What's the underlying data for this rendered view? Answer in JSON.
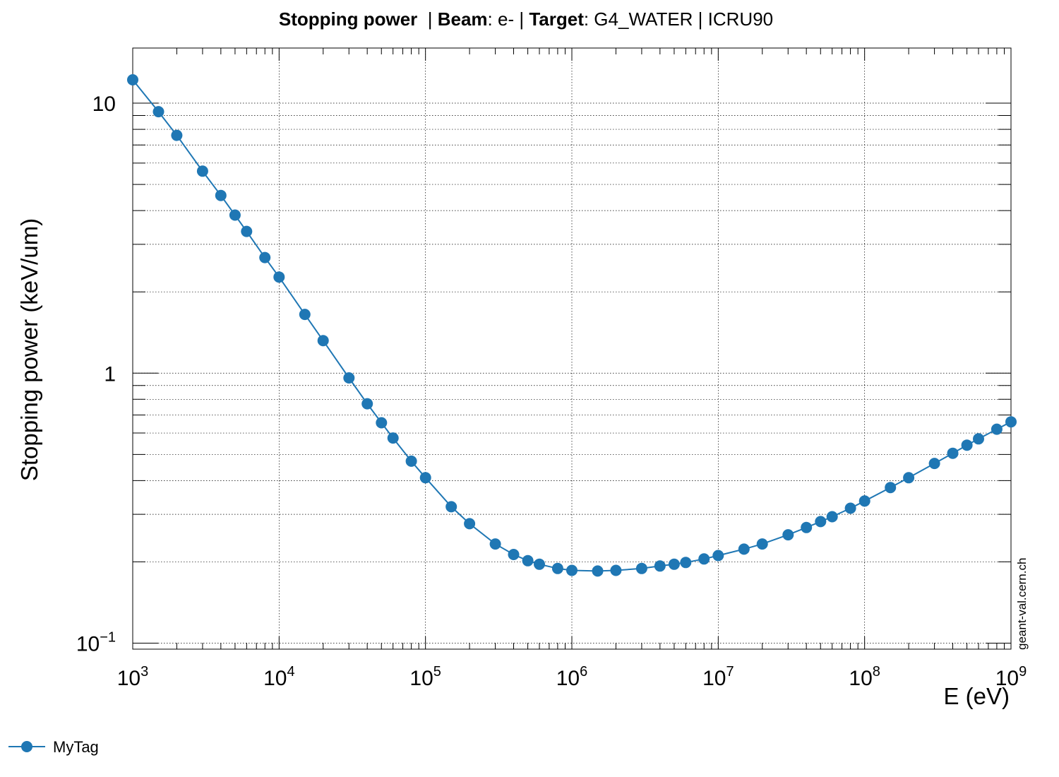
{
  "title": {
    "part1_bold": "Stopping power",
    "part2": "  | ",
    "part3_bold": "Beam",
    "part4": ": e- | ",
    "part5_bold": "Target",
    "part6": ": G4_WATER | ICRU90"
  },
  "watermark": "geant-val.cern.ch",
  "colors": {
    "series": "#1f77b4",
    "grid": "#000000"
  },
  "chart_data": {
    "type": "line",
    "xlabel": "E (eV)",
    "ylabel": "Stopping power (keV/um)",
    "xscale": "log",
    "yscale": "log",
    "xlim": [
      1000,
      1000000000
    ],
    "ylim": [
      0.095,
      16
    ],
    "grid": true,
    "legend": "bottom-left",
    "x_ticks": [
      {
        "base": "10",
        "exp": "3",
        "value": 1000
      },
      {
        "base": "10",
        "exp": "4",
        "value": 10000
      },
      {
        "base": "10",
        "exp": "5",
        "value": 100000
      },
      {
        "base": "10",
        "exp": "6",
        "value": 1000000
      },
      {
        "base": "10",
        "exp": "7",
        "value": 10000000
      },
      {
        "base": "10",
        "exp": "8",
        "value": 100000000
      },
      {
        "base": "10",
        "exp": "9",
        "value": 1000000000
      }
    ],
    "y_ticks": [
      {
        "base": "10",
        "exp": "−1",
        "value": 0.1
      },
      {
        "base": "1",
        "exp": "",
        "value": 1
      },
      {
        "base": "10",
        "exp": "",
        "value": 10
      }
    ],
    "series": [
      {
        "name": "MyTag",
        "marker": "circle",
        "x": [
          1000,
          1500,
          2000,
          3000,
          4000,
          5000,
          6000,
          8000,
          10000,
          15000,
          20000,
          30000,
          40000,
          50000,
          60000,
          80000,
          100000,
          150000,
          200000,
          300000,
          400000,
          500000,
          600000,
          800000,
          1000000,
          1500000,
          2000000,
          3000000,
          4000000,
          5000000,
          6000000,
          8000000,
          10000000,
          15000000,
          20000000,
          30000000,
          40000000,
          50000000,
          60000000,
          80000000,
          100000000,
          150000000,
          200000000,
          300000000,
          400000000,
          500000000,
          600000000,
          800000000,
          1000000000
        ],
        "y": [
          12.2,
          9.3,
          7.6,
          5.6,
          4.55,
          3.85,
          3.35,
          2.68,
          2.27,
          1.65,
          1.32,
          0.96,
          0.77,
          0.655,
          0.575,
          0.472,
          0.41,
          0.32,
          0.277,
          0.233,
          0.213,
          0.202,
          0.196,
          0.189,
          0.186,
          0.185,
          0.186,
          0.189,
          0.193,
          0.196,
          0.199,
          0.205,
          0.211,
          0.223,
          0.233,
          0.252,
          0.268,
          0.282,
          0.294,
          0.316,
          0.336,
          0.377,
          0.41,
          0.463,
          0.505,
          0.541,
          0.571,
          0.62,
          0.66
        ]
      }
    ]
  }
}
